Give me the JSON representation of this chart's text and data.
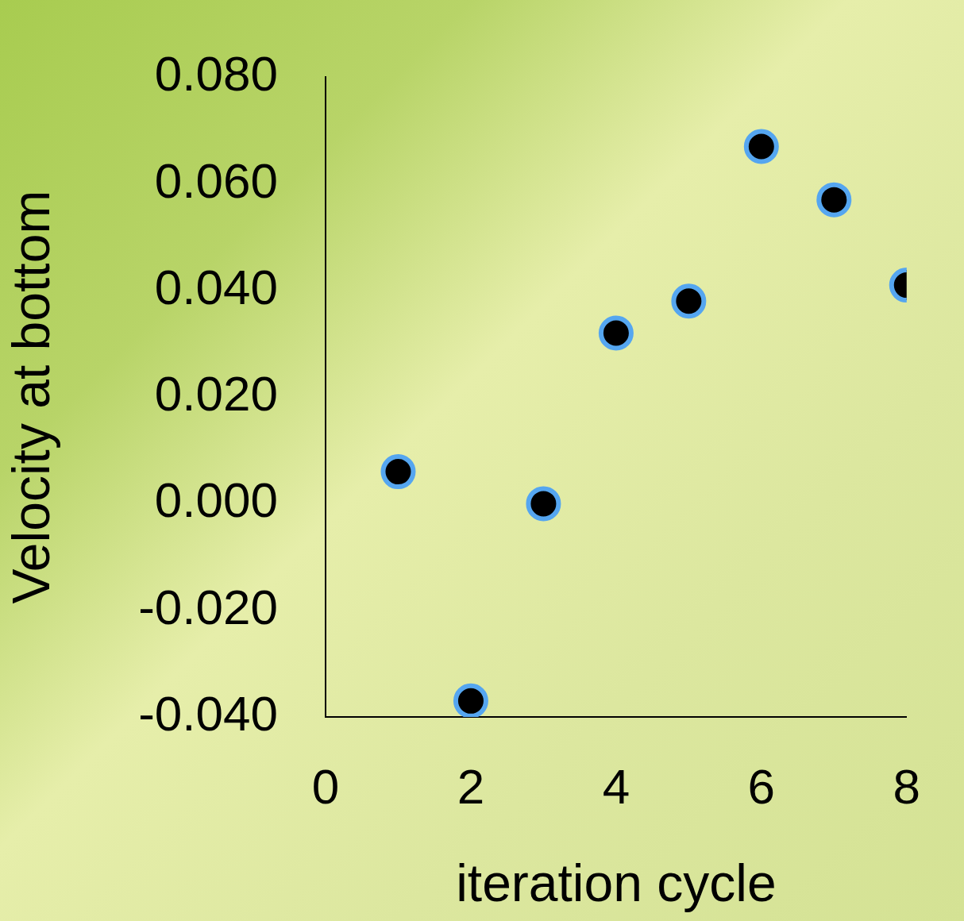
{
  "chart_data": {
    "type": "scatter",
    "xlabel": "iteration cycle",
    "ylabel": "Velocity at bottom",
    "x": [
      1,
      2,
      3,
      4,
      5,
      6,
      7,
      8
    ],
    "series": [
      {
        "color": "#000000",
        "values": [
          0.006,
          -0.037,
          0.0,
          0.032,
          0.038,
          0.067,
          0.057,
          0.041
        ]
      }
    ],
    "xlim": [
      0,
      8
    ],
    "xticks": [
      0,
      2,
      4,
      6,
      8
    ],
    "ylim": [
      -0.04,
      0.08
    ],
    "yticks": [
      {
        "value": -0.04,
        "label": "-0.040"
      },
      {
        "value": -0.02,
        "label": "-0.020"
      },
      {
        "value": 0,
        "label": "0.000"
      },
      {
        "value": 0.02,
        "label": "0.020"
      },
      {
        "value": 0.04,
        "label": "0.040"
      },
      {
        "value": 0.06,
        "label": "0.060"
      },
      {
        "value": 0.08,
        "label": "0.080"
      }
    ],
    "grid": false,
    "legend": false,
    "marker": "circle"
  }
}
